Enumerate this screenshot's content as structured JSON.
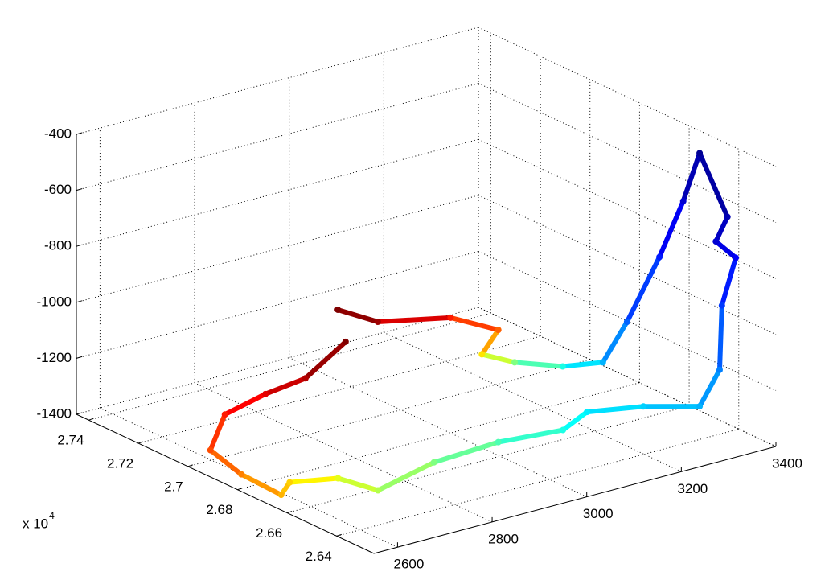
{
  "chart_data": {
    "type": "line3d",
    "colormap": "jet",
    "clim": [
      0,
      1
    ],
    "grid": true,
    "xlim": [
      2550,
      3400
    ],
    "ylim": [
      26250,
      27450
    ],
    "zlim": [
      -1400,
      -400
    ],
    "xticks": [
      2600,
      2800,
      3000,
      3200,
      3400
    ],
    "yticks": [
      {
        "value": 26400,
        "label": "2.64"
      },
      {
        "value": 26600,
        "label": "2.66"
      },
      {
        "value": 26800,
        "label": "2.68"
      },
      {
        "value": 27000,
        "label": "2.7"
      },
      {
        "value": 27200,
        "label": "2.72"
      },
      {
        "value": 27400,
        "label": "2.74"
      }
    ],
    "zticks": [
      -1400,
      -1200,
      -1000,
      -800,
      -600,
      -400
    ],
    "y_multiplier": {
      "base": "x 10",
      "exponent": "4"
    },
    "series": [
      {
        "x": [
          3002,
          3021,
          3131,
          3160,
          3108,
          3129,
          3182,
          3248,
          3276,
          3345,
          3377,
          3376,
          3351,
          3305,
          3325,
          3290,
          3303,
          3332,
          3256,
          3164,
          3120,
          2998,
          2853,
          2697,
          2678,
          2601,
          2594,
          2559,
          2587,
          2669,
          2742,
          2801,
          2920
        ],
        "y": [
          27258,
          27133,
          27049,
          26912,
          26879,
          26787,
          26694,
          26658,
          26614,
          26615,
          26580,
          26512,
          26352,
          26311,
          26269,
          26258,
          26292,
          26428,
          26510,
          26562,
          26575,
          26603,
          26586,
          26514,
          26639,
          26687,
          26708,
          26802,
          26980,
          27078,
          27054,
          27005,
          27070
        ],
        "z": [
          -1150,
          -1150,
          -1150,
          -1150,
          -1200,
          -1200,
          -1200,
          -1200,
          -1050,
          -850,
          -650,
          -450,
          -600,
          -650,
          -700,
          -850,
          -1100,
          -1300,
          -1300,
          -1300,
          -1350,
          -1350,
          -1350,
          -1350,
          -1350,
          -1350,
          -1400,
          -1350,
          -1350,
          -1300,
          -1250,
          -1200,
          -1150
        ],
        "c": [
          1.0,
          0.97,
          0.85,
          0.78,
          0.65,
          0.5,
          0.4,
          0.3,
          0.22,
          0.15,
          0.08,
          0.02,
          0.05,
          0.08,
          0.12,
          0.18,
          0.25,
          0.3,
          0.33,
          0.36,
          0.4,
          0.45,
          0.5,
          0.55,
          0.6,
          0.67,
          0.7,
          0.75,
          0.8,
          0.85,
          0.9,
          0.95,
          1.0
        ]
      }
    ]
  }
}
